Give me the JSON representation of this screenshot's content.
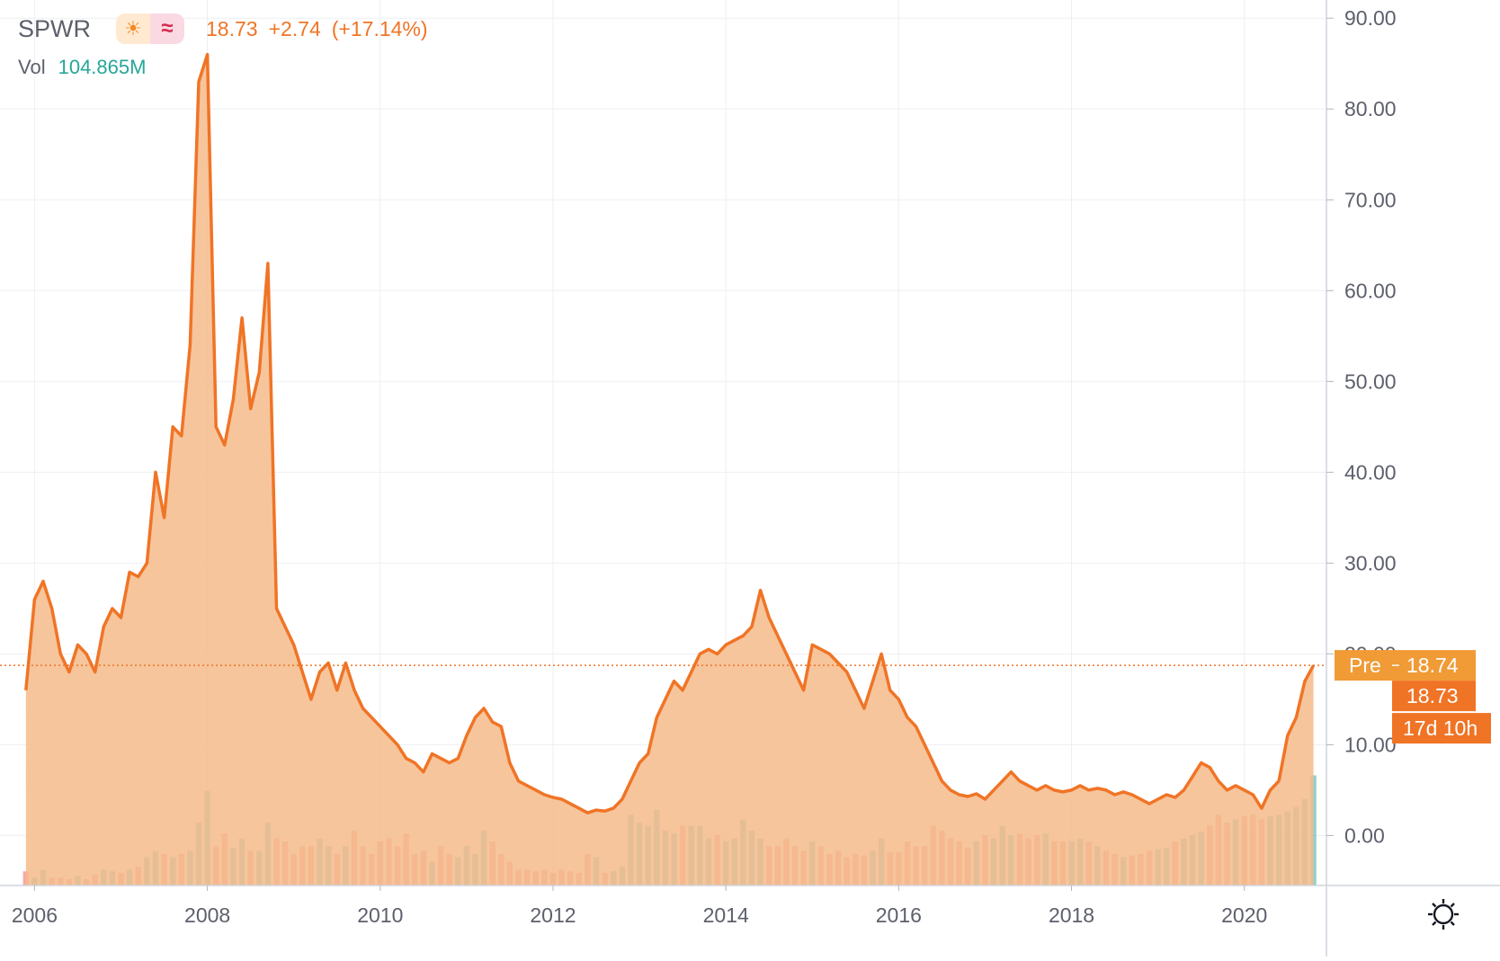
{
  "header": {
    "symbol": "SPWR",
    "icons": [
      "sun-icon",
      "approx-icon"
    ],
    "last_price": "18.73",
    "change": "+2.74",
    "change_pct": "(+17.14%)",
    "volume_label": "Vol",
    "volume_value": "104.865M"
  },
  "labels": {
    "pre_tag": "Pre",
    "pre_price": "18.74",
    "last_price": "18.73",
    "countdown": "17d 10h"
  },
  "colors": {
    "line": "#f07426",
    "area": "#f5bb8b",
    "volume_up": "#26a69a",
    "volume_down": "#ef5350",
    "pre_tag": "#f09b36",
    "price_tag": "#f07426",
    "countdown_tag": "#f07426"
  },
  "chart_data": {
    "type": "area",
    "title": "",
    "interval": "monthly",
    "y_axis_position": "right",
    "y_ticks": [
      "0.00",
      "10.00",
      "20.00",
      "30.00",
      "40.00",
      "50.00",
      "60.00",
      "70.00",
      "80.00",
      "90.00"
    ],
    "x_ticks": [
      "2006",
      "2008",
      "2010",
      "2012",
      "2014",
      "2016",
      "2018",
      "2020"
    ],
    "ylim": [
      -5.5,
      92
    ],
    "xlim": [
      2005.6,
      2020.95
    ],
    "grid": true,
    "price_line": 18.74,
    "series": [
      {
        "type": "line",
        "x": [
          2005.9,
          2006.0,
          2006.1,
          2006.2,
          2006.3,
          2006.4,
          2006.5,
          2006.6,
          2006.7,
          2006.8,
          2006.9,
          2007.0,
          2007.1,
          2007.2,
          2007.3,
          2007.4,
          2007.5,
          2007.6,
          2007.7,
          2007.8,
          2007.9,
          2008.0,
          2008.1,
          2008.2,
          2008.3,
          2008.4,
          2008.5,
          2008.6,
          2008.7,
          2008.8,
          2008.9,
          2009.0,
          2009.1,
          2009.2,
          2009.3,
          2009.4,
          2009.5,
          2009.6,
          2009.7,
          2009.8,
          2009.9,
          2010.0,
          2010.1,
          2010.2,
          2010.3,
          2010.4,
          2010.5,
          2010.6,
          2010.7,
          2010.8,
          2010.9,
          2011.0,
          2011.1,
          2011.2,
          2011.3,
          2011.4,
          2011.5,
          2011.6,
          2011.7,
          2011.8,
          2011.9,
          2012.0,
          2012.1,
          2012.2,
          2012.3,
          2012.4,
          2012.5,
          2012.6,
          2012.7,
          2012.8,
          2012.9,
          2013.0,
          2013.1,
          2013.2,
          2013.3,
          2013.4,
          2013.5,
          2013.6,
          2013.7,
          2013.8,
          2013.9,
          2014.0,
          2014.1,
          2014.2,
          2014.3,
          2014.4,
          2014.5,
          2014.6,
          2014.7,
          2014.8,
          2014.9,
          2015.0,
          2015.1,
          2015.2,
          2015.3,
          2015.4,
          2015.5,
          2015.6,
          2015.7,
          2015.8,
          2015.9,
          2016.0,
          2016.1,
          2016.2,
          2016.3,
          2016.4,
          2016.5,
          2016.6,
          2016.7,
          2016.8,
          2016.9,
          2017.0,
          2017.1,
          2017.2,
          2017.3,
          2017.4,
          2017.5,
          2017.6,
          2017.7,
          2017.8,
          2017.9,
          2018.0,
          2018.1,
          2018.2,
          2018.3,
          2018.4,
          2018.5,
          2018.6,
          2018.7,
          2018.8,
          2018.9,
          2019.0,
          2019.1,
          2019.2,
          2019.3,
          2019.4,
          2019.5,
          2019.6,
          2019.7,
          2019.8,
          2019.9,
          2020.0,
          2020.1,
          2020.2,
          2020.3,
          2020.4,
          2020.5,
          2020.6,
          2020.7,
          2020.8
        ],
        "values": [
          16.0,
          26.0,
          28.0,
          25.0,
          20.0,
          18.0,
          21.0,
          20.0,
          18.0,
          23.0,
          25.0,
          24.0,
          29.0,
          28.5,
          30.0,
          40.0,
          35.0,
          45.0,
          44.0,
          54.0,
          83.0,
          86.0,
          45.0,
          43.0,
          48.0,
          57.0,
          47.0,
          51.0,
          63.0,
          25.0,
          23.0,
          21.0,
          18.0,
          15.0,
          18.0,
          19.0,
          16.0,
          19.0,
          16.0,
          14.0,
          13.0,
          12.0,
          11.0,
          10.0,
          8.5,
          8.0,
          7.0,
          9.0,
          8.5,
          8.0,
          8.5,
          11.0,
          13.0,
          14.0,
          12.5,
          12.0,
          8.0,
          6.0,
          5.5,
          5.0,
          4.5,
          4.2,
          4.0,
          3.5,
          3.0,
          2.5,
          2.8,
          2.7,
          3.0,
          4.0,
          6.0,
          8.0,
          9.0,
          13.0,
          15.0,
          17.0,
          16.0,
          18.0,
          20.0,
          20.5,
          20.0,
          21.0,
          21.5,
          22.0,
          23.0,
          27.0,
          24.0,
          22.0,
          20.0,
          18.0,
          16.0,
          21.0,
          20.5,
          20.0,
          19.0,
          18.0,
          16.0,
          14.0,
          17.0,
          20.0,
          16.0,
          15.0,
          13.0,
          12.0,
          10.0,
          8.0,
          6.0,
          5.0,
          4.5,
          4.3,
          4.6,
          4.0,
          5.0,
          6.0,
          7.0,
          6.0,
          5.5,
          5.0,
          5.5,
          5.0,
          4.8,
          5.0,
          5.5,
          5.0,
          5.2,
          5.0,
          4.5,
          4.8,
          4.5,
          4.0,
          3.5,
          4.0,
          4.5,
          4.2,
          5.0,
          6.5,
          8.0,
          7.5,
          6.0,
          5.0,
          5.5,
          5.0,
          4.5,
          3.0,
          5.0,
          6.0,
          11.0,
          13.0,
          17.0,
          18.73
        ]
      },
      {
        "type": "volume",
        "x": [
          2005.9,
          2006.0,
          2006.1,
          2006.2,
          2006.3,
          2006.4,
          2006.5,
          2006.6,
          2006.7,
          2006.8,
          2006.9,
          2007.0,
          2007.1,
          2007.2,
          2007.3,
          2007.4,
          2007.5,
          2007.6,
          2007.7,
          2007.8,
          2007.9,
          2008.0,
          2008.1,
          2008.2,
          2008.3,
          2008.4,
          2008.5,
          2008.6,
          2008.7,
          2008.8,
          2008.9,
          2009.0,
          2009.1,
          2009.2,
          2009.3,
          2009.4,
          2009.5,
          2009.6,
          2009.7,
          2009.8,
          2009.9,
          2010.0,
          2010.1,
          2010.2,
          2010.3,
          2010.4,
          2010.5,
          2010.6,
          2010.7,
          2010.8,
          2010.9,
          2011.0,
          2011.1,
          2011.2,
          2011.3,
          2011.4,
          2011.5,
          2011.6,
          2011.7,
          2011.8,
          2011.9,
          2012.0,
          2012.1,
          2012.2,
          2012.3,
          2012.4,
          2012.5,
          2012.6,
          2012.7,
          2012.8,
          2012.9,
          2013.0,
          2013.1,
          2013.2,
          2013.3,
          2013.4,
          2013.5,
          2013.6,
          2013.7,
          2013.8,
          2013.9,
          2014.0,
          2014.1,
          2014.2,
          2014.3,
          2014.4,
          2014.5,
          2014.6,
          2014.7,
          2014.8,
          2014.9,
          2015.0,
          2015.1,
          2015.2,
          2015.3,
          2015.4,
          2015.5,
          2015.6,
          2015.7,
          2015.8,
          2015.9,
          2016.0,
          2016.1,
          2016.2,
          2016.3,
          2016.4,
          2016.5,
          2016.6,
          2016.7,
          2016.8,
          2016.9,
          2017.0,
          2017.1,
          2017.2,
          2017.3,
          2017.4,
          2017.5,
          2017.6,
          2017.7,
          2017.8,
          2017.9,
          2018.0,
          2018.1,
          2018.2,
          2018.3,
          2018.4,
          2018.5,
          2018.6,
          2018.7,
          2018.8,
          2018.9,
          2019.0,
          2019.1,
          2019.2,
          2019.3,
          2019.4,
          2019.5,
          2019.6,
          2019.7,
          2019.8,
          2019.9,
          2020.0,
          2020.1,
          2020.2,
          2020.3,
          2020.4,
          2020.5,
          2020.6,
          2020.7,
          2020.8
        ],
        "values": [
          9,
          5,
          10,
          5,
          5,
          4,
          6,
          4,
          7,
          10,
          9,
          8,
          10,
          12,
          18,
          22,
          20,
          18,
          20,
          22,
          40,
          60,
          25,
          33,
          24,
          30,
          22,
          22,
          40,
          30,
          28,
          20,
          25,
          25,
          30,
          25,
          20,
          25,
          35,
          25,
          20,
          28,
          30,
          25,
          33,
          20,
          22,
          15,
          25,
          20,
          18,
          25,
          20,
          35,
          28,
          20,
          15,
          10,
          10,
          9,
          10,
          8,
          10,
          9,
          8,
          20,
          18,
          8,
          9,
          12,
          45,
          40,
          38,
          48,
          35,
          33,
          38,
          38,
          38,
          30,
          32,
          28,
          30,
          42,
          35,
          30,
          25,
          25,
          30,
          25,
          22,
          28,
          25,
          20,
          22,
          18,
          20,
          19,
          22,
          30,
          21,
          21,
          28,
          25,
          25,
          38,
          35,
          30,
          28,
          24,
          28,
          32,
          30,
          38,
          32,
          33,
          30,
          32,
          33,
          28,
          28,
          28,
          30,
          28,
          25,
          22,
          20,
          18,
          19,
          20,
          22,
          23,
          24,
          28,
          30,
          32,
          34,
          38,
          45,
          40,
          42,
          44,
          45,
          42,
          44,
          45,
          47,
          50,
          55,
          70
        ],
        "direction": [
          "down",
          "up",
          "up",
          "down",
          "down",
          "down",
          "up",
          "down",
          "down",
          "up",
          "up",
          "down",
          "up",
          "down",
          "up",
          "up",
          "down",
          "up",
          "down",
          "up",
          "up",
          "up",
          "down",
          "down",
          "up",
          "up",
          "down",
          "up",
          "up",
          "down",
          "down",
          "down",
          "down",
          "down",
          "up",
          "up",
          "down",
          "up",
          "down",
          "down",
          "down",
          "down",
          "down",
          "down",
          "down",
          "down",
          "down",
          "up",
          "down",
          "down",
          "up",
          "up",
          "up",
          "up",
          "down",
          "down",
          "down",
          "down",
          "down",
          "down",
          "down",
          "down",
          "down",
          "down",
          "down",
          "down",
          "up",
          "down",
          "up",
          "up",
          "up",
          "up",
          "up",
          "up",
          "up",
          "up",
          "down",
          "up",
          "up",
          "up",
          "down",
          "up",
          "up",
          "up",
          "up",
          "up",
          "down",
          "down",
          "down",
          "down",
          "down",
          "up",
          "down",
          "down",
          "down",
          "down",
          "down",
          "down",
          "up",
          "up",
          "down",
          "down",
          "down",
          "down",
          "down",
          "down",
          "down",
          "down",
          "down",
          "down",
          "up",
          "down",
          "up",
          "up",
          "up",
          "down",
          "down",
          "down",
          "up",
          "down",
          "down",
          "up",
          "up",
          "down",
          "up",
          "down",
          "down",
          "up",
          "down",
          "down",
          "down",
          "up",
          "up",
          "down",
          "up",
          "up",
          "up",
          "down",
          "down",
          "down",
          "up",
          "down",
          "down",
          "down",
          "up",
          "up",
          "up",
          "up",
          "up",
          "up"
        ]
      }
    ],
    "annotations": [
      "Pre 18.74",
      "18.73",
      "17d 10h"
    ]
  }
}
